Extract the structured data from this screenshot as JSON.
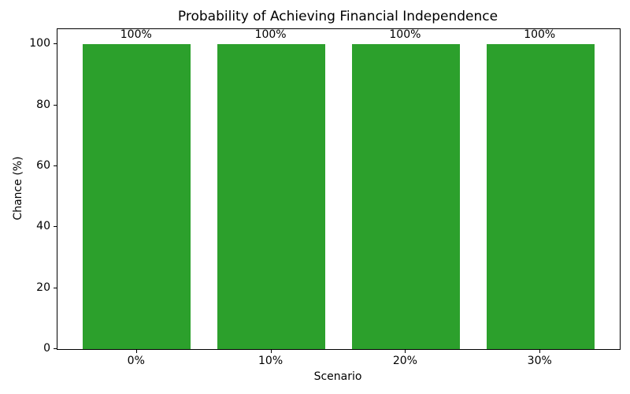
{
  "chart_data": {
    "type": "bar",
    "title": "Probability of Achieving Financial Independence",
    "xlabel": "Scenario",
    "ylabel": "Chance (%)",
    "categories": [
      "0%",
      "10%",
      "20%",
      "30%"
    ],
    "values": [
      100,
      100,
      100,
      100
    ],
    "bar_labels": [
      "100%",
      "100%",
      "100%",
      "100%"
    ],
    "yticks": [
      0,
      20,
      40,
      60,
      80,
      100
    ],
    "ylim": [
      0,
      105
    ],
    "bar_color": "#2ca02c",
    "grid": "off",
    "legend": "none",
    "background_color": "#ffffff",
    "text_color": "#000000"
  }
}
